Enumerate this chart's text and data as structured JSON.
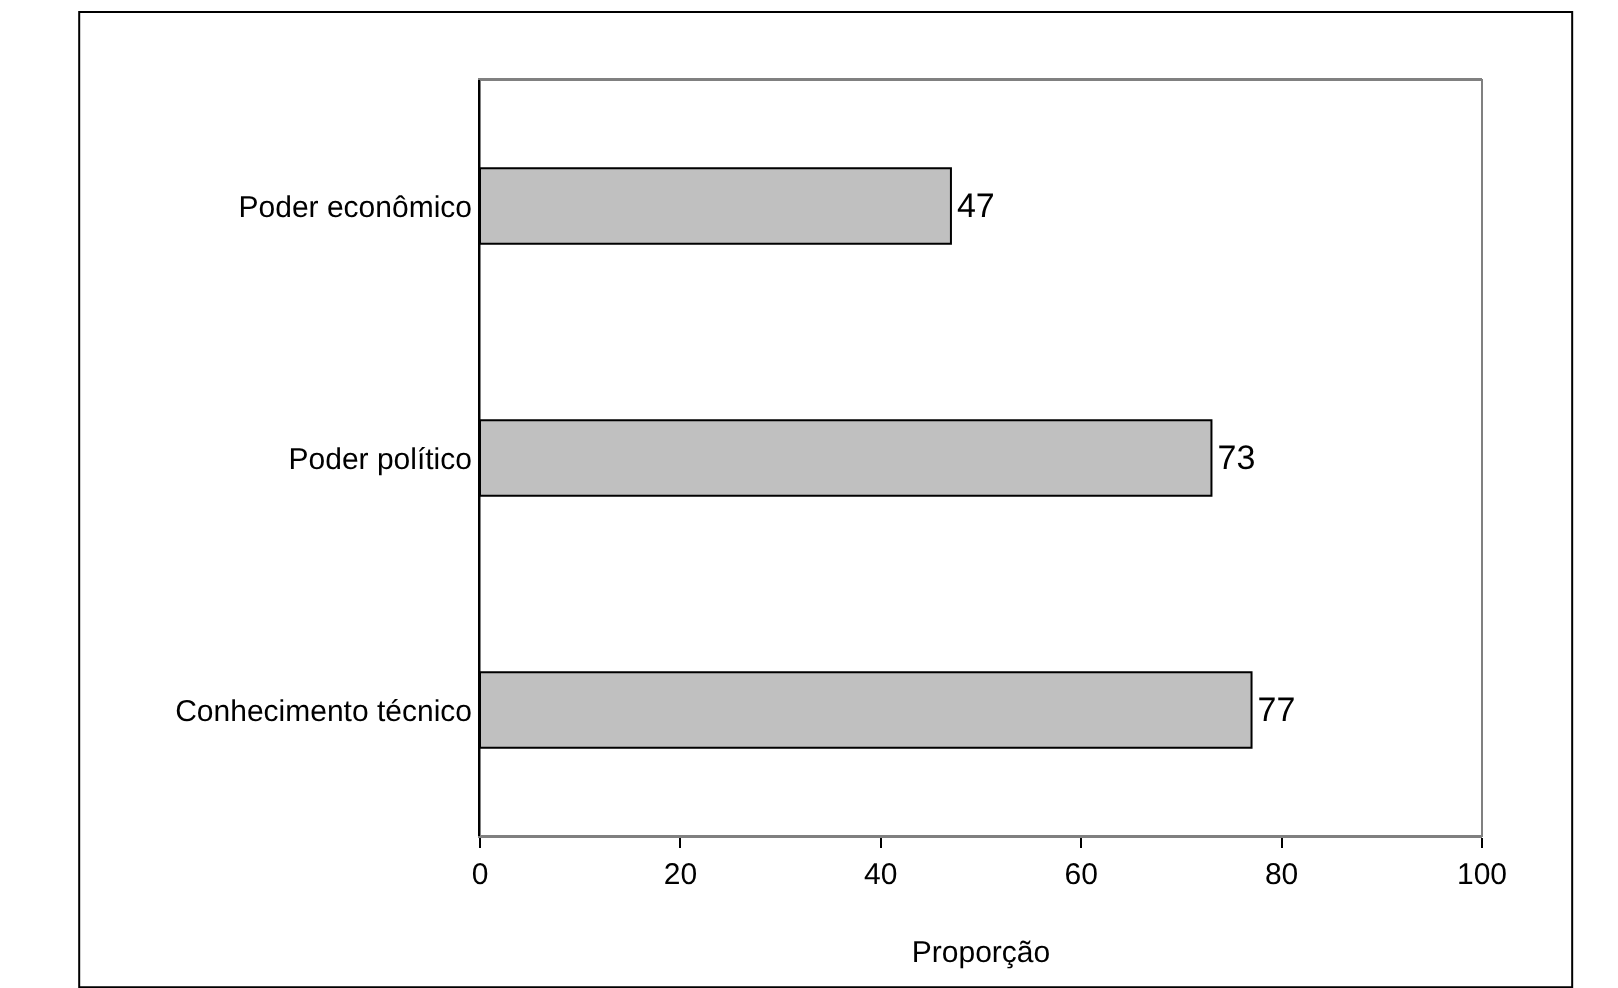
{
  "chart_data": {
    "type": "bar",
    "orientation": "horizontal",
    "xlabel": "Proporção",
    "categories": [
      "Poder econômico",
      "Poder político",
      "Conhecimento técnico"
    ],
    "values": [
      47,
      73,
      77
    ],
    "color": "#c0c0c0",
    "xlim": [
      0,
      100
    ],
    "xticks": [
      0,
      20,
      40,
      60,
      80,
      100
    ],
    "data_labels": true,
    "legend": false
  }
}
